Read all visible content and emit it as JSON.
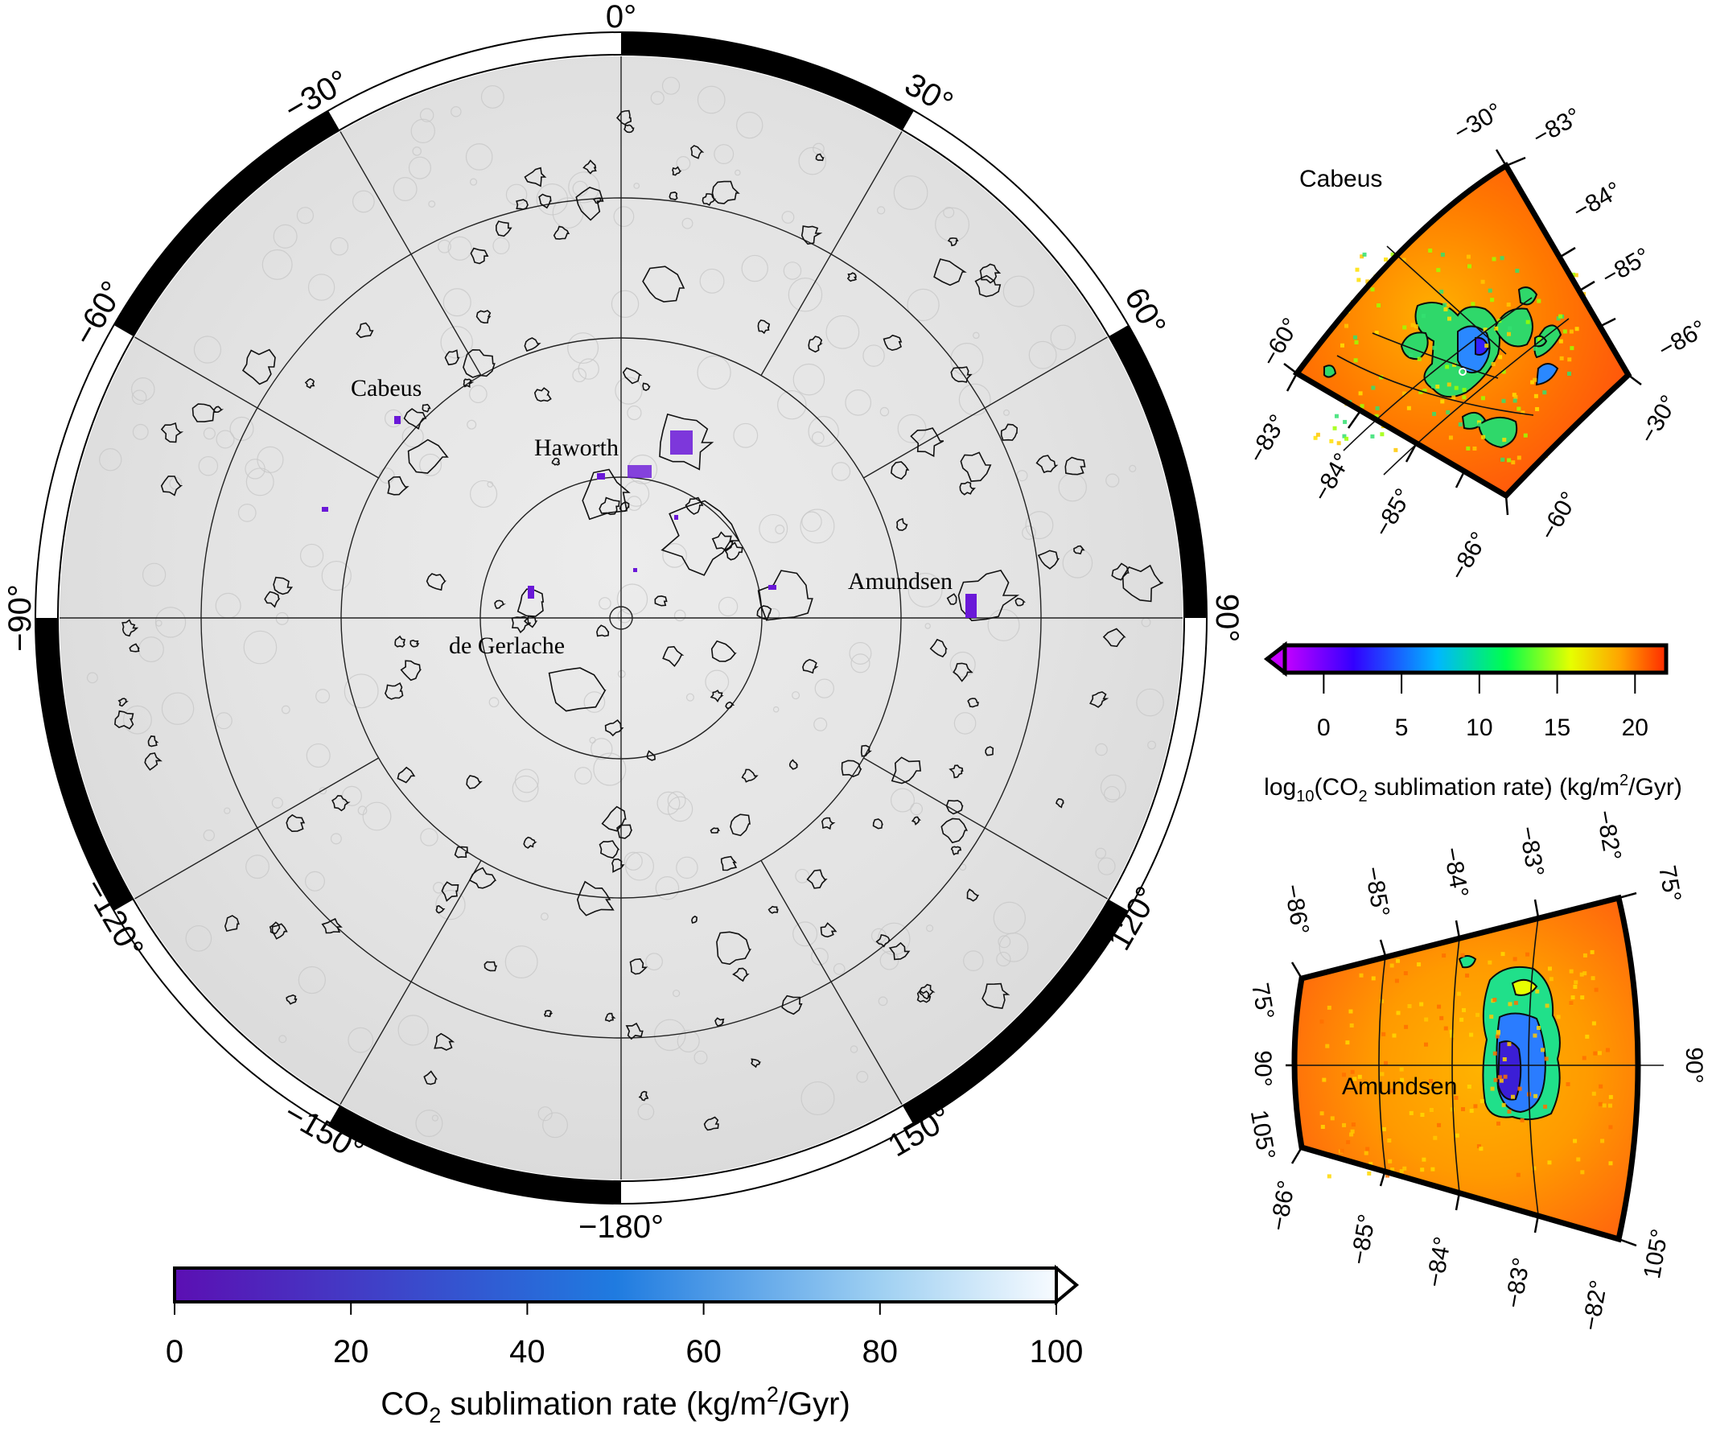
{
  "main_map": {
    "longitude_labels": {
      "l0": "0°",
      "l30": "30°",
      "l60": "60°",
      "l90": "90°",
      "l120": "120°",
      "l150": "150°",
      "l180": "−180°",
      "lm150": "−150°",
      "lm120": "−120°",
      "lm90": "−90°",
      "lm60": "−60°",
      "lm30": "−30°"
    },
    "crater_labels": {
      "cabeus": "Cabeus",
      "haworth": "Haworth",
      "amundsen": "Amundsen",
      "de_gerlache": "de Gerlache"
    }
  },
  "main_colorbar": {
    "ticks": [
      "0",
      "20",
      "40",
      "60",
      "80",
      "100"
    ],
    "label_prefix": "CO",
    "label_sub": "2",
    "label_mid": " sublimation rate (kg/m",
    "label_sup": "2",
    "label_suffix": "/Gyr)",
    "range": [
      0,
      100
    ],
    "colors": [
      "#5b0fb3",
      "#1f7be0",
      "#f7fbff"
    ]
  },
  "inset_cabeus": {
    "title": "Cabeus",
    "labels": {
      "top_lon": "−30°",
      "top_lat83": "−83°",
      "lat84": "−84°",
      "lat85": "−85°",
      "lat86r": "−86°",
      "right_lon": "−30°",
      "left_lon": "−60°",
      "left_lat": "−83°",
      "b84": "−84°",
      "b85": "−85°",
      "b86": "−86°",
      "bottom_lon": "−60°"
    }
  },
  "log_colorbar": {
    "ticks": [
      "0",
      "5",
      "10",
      "15",
      "20"
    ],
    "range": [
      -2.5,
      22
    ],
    "label_a": "log",
    "label_sub10": "10",
    "label_b": "(CO",
    "label_sub2": "2",
    "label_c": " sublimation rate) (kg/m",
    "label_sup": "2",
    "label_d": "/Gyr)",
    "colors": [
      "#c400ff",
      "#3300ff",
      "#00b7ff",
      "#00ff4c",
      "#e6ff00",
      "#ffa300",
      "#ff2a00"
    ]
  },
  "inset_amundsen": {
    "title": "Amundsen",
    "labels": {
      "t86": "−86°",
      "t85": "−85°",
      "t84": "−84°",
      "t83": "−83°",
      "t82": "−82°",
      "tr75": "75°",
      "l75": "75°",
      "l90": "90°",
      "l105": "105°",
      "r90": "90°",
      "b86": "−86°",
      "b85": "−85°",
      "b84": "−84°",
      "b83": "−83°",
      "b82": "−82°",
      "br105": "105°"
    }
  }
}
